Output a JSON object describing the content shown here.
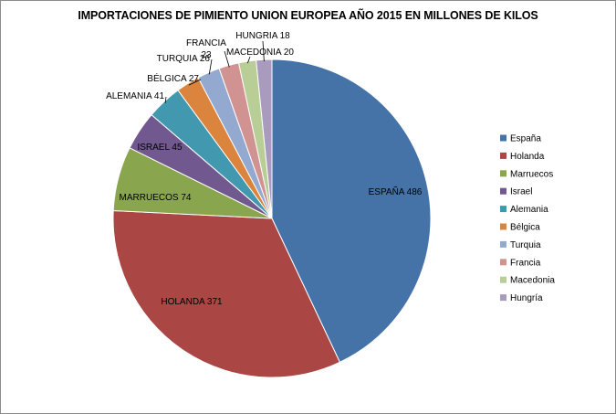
{
  "chart_data": {
    "type": "pie",
    "title": "IMPORTACIONES DE PIMIENTO UNION EUROPEA AÑO 2015 EN MILLONES DE KILOS",
    "legend_position": "right",
    "slices": [
      {
        "name": "España",
        "value": 486,
        "label": "ESPAÑA 486",
        "color": "#4572a7"
      },
      {
        "name": "Holanda",
        "value": 371,
        "label": "HOLANDA 371",
        "color": "#aa4643"
      },
      {
        "name": "Marruecos",
        "value": 74,
        "label": "MARRUECOS 74",
        "color": "#89a54e"
      },
      {
        "name": "Israel",
        "value": 45,
        "label": "ISRAEL 45",
        "color": "#71588f"
      },
      {
        "name": "Alemania",
        "value": 41,
        "label": "ALEMANIA 41",
        "color": "#4198af"
      },
      {
        "name": "Bélgica",
        "value": 27,
        "label": "BÉLGICA 27",
        "color": "#db843d"
      },
      {
        "name": "Turquia",
        "value": 26,
        "label": "TURQUIA 26",
        "color": "#93a9cf"
      },
      {
        "name": "Francia",
        "value": 23,
        "label": "FRANCIA\n23",
        "color": "#d19392"
      },
      {
        "name": "Macedonia",
        "value": 20,
        "label": "MACEDONIA 20",
        "color": "#b9cd96"
      },
      {
        "name": "Hungría",
        "value": 18,
        "label": "HUNGRIA 18",
        "color": "#a99bbd"
      }
    ]
  }
}
